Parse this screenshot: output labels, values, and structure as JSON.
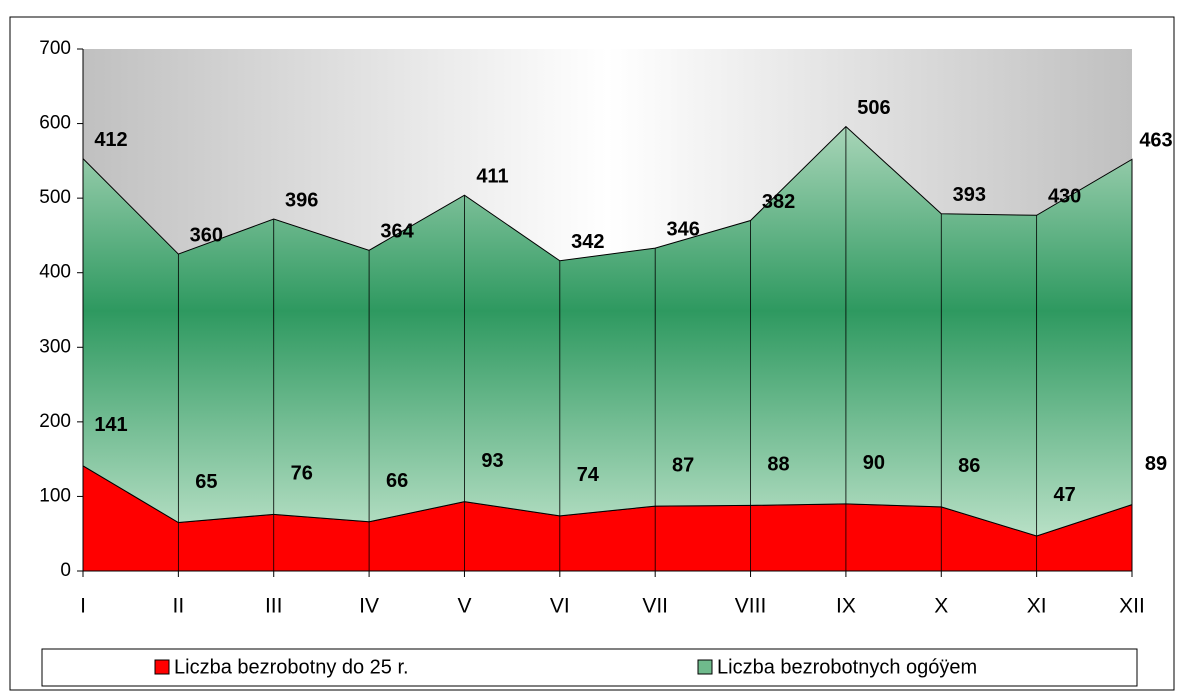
{
  "chart_data": {
    "type": "area",
    "stacked": true,
    "categories": [
      "I",
      "II",
      "III",
      "IV",
      "V",
      "VI",
      "VII",
      "VIII",
      "IX",
      "X",
      "XI",
      "XII"
    ],
    "series": [
      {
        "name": "Liczba bezrobotny do 25 r.",
        "color": "#ff0000",
        "values": [
          141,
          65,
          76,
          66,
          93,
          74,
          87,
          88,
          90,
          86,
          47,
          89
        ]
      },
      {
        "name": "Liczba bezrobotnych ogóÿem",
        "color": "#2e9960",
        "values": [
          412,
          360,
          396,
          364,
          411,
          342,
          346,
          382,
          506,
          393,
          430,
          463
        ]
      }
    ],
    "ylim": [
      0,
      700
    ],
    "yticks": [
      0,
      100,
      200,
      300,
      400,
      500,
      600,
      700
    ],
    "grid": false,
    "legend": "bottom"
  }
}
